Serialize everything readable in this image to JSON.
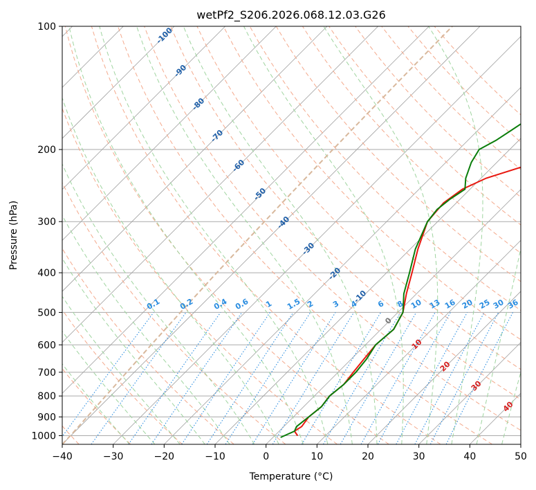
{
  "chart_data": {
    "type": "line",
    "title": "wetPf2_S206.2026.068.12.03.G26",
    "xlabel": "Temperature (°C)",
    "ylabel": "Pressure (hPa)",
    "xlim": [
      -40,
      50
    ],
    "ylim": [
      1050,
      100
    ],
    "x_ticks": [
      "−40",
      "−30",
      "−20",
      "−10",
      "0",
      "10",
      "20",
      "30",
      "40",
      "50"
    ],
    "y_ticks": [
      "100",
      "200",
      "300",
      "400",
      "500",
      "600",
      "700",
      "800",
      "900",
      "1000"
    ],
    "series": [
      {
        "name": "Temperature",
        "color": "#e8170f",
        "points": [
          [
            4.5,
            1000
          ],
          [
            3.0,
            975
          ],
          [
            3.5,
            950
          ],
          [
            3.0,
            900
          ],
          [
            3.5,
            850
          ],
          [
            3.0,
            800
          ],
          [
            3.5,
            750
          ],
          [
            3.0,
            700
          ],
          [
            2.5,
            650
          ],
          [
            2.0,
            600
          ],
          [
            2.5,
            550
          ],
          [
            1.0,
            500
          ],
          [
            -2.0,
            450
          ],
          [
            -5.0,
            400
          ],
          [
            -8.5,
            350
          ],
          [
            -12.0,
            300
          ],
          [
            -12.5,
            270
          ],
          [
            -11.5,
            250
          ],
          [
            -9.0,
            235
          ],
          [
            -4.0,
            220
          ],
          [
            1.0,
            200
          ],
          [
            6.0,
            185
          ],
          [
            13.0,
            170
          ],
          [
            18.0,
            160
          ],
          [
            22.0,
            150
          ],
          [
            26.0,
            135
          ],
          [
            30.0,
            120
          ],
          [
            32.0,
            110
          ],
          [
            33.5,
            100
          ]
        ]
      },
      {
        "name": "Dewpoint",
        "color": "#0a7d0a",
        "points": [
          [
            1.5,
            1010
          ],
          [
            3.0,
            975
          ],
          [
            2.5,
            950
          ],
          [
            3.0,
            900
          ],
          [
            3.5,
            850
          ],
          [
            3.0,
            800
          ],
          [
            3.5,
            750
          ],
          [
            3.5,
            700
          ],
          [
            3.0,
            650
          ],
          [
            2.0,
            600
          ],
          [
            2.5,
            550
          ],
          [
            1.0,
            500
          ],
          [
            -2.5,
            450
          ],
          [
            -5.5,
            400
          ],
          [
            -9.0,
            350
          ],
          [
            -12.0,
            300
          ],
          [
            -12.5,
            280
          ],
          [
            -12.0,
            265
          ],
          [
            -11.0,
            250
          ],
          [
            -13.0,
            235
          ],
          [
            -15.0,
            215
          ],
          [
            -16.0,
            200
          ],
          [
            -14.5,
            190
          ],
          [
            -13.5,
            180
          ],
          [
            -12.5,
            170
          ],
          [
            -10.5,
            155
          ],
          [
            -8.0,
            140
          ],
          [
            -5.5,
            125
          ],
          [
            -3.5,
            115
          ],
          [
            -1.5,
            100
          ]
        ]
      }
    ],
    "dry_adiabat_labels": [
      "-100",
      "-90",
      "-80",
      "-70",
      "-60",
      "-50",
      "-40",
      "-30",
      "-20",
      "-10",
      "0",
      "10",
      "20",
      "30",
      "40"
    ],
    "mixing_ratio_labels": [
      "0.1",
      "0.2",
      "0.4",
      "0.6",
      "1",
      "1.5",
      "2",
      "3",
      "4",
      "6",
      "8",
      "10",
      "13",
      "16",
      "20",
      "25",
      "30",
      "36"
    ],
    "moist_adiabat_labels": [
      "0",
      "10",
      "20",
      "30",
      "40"
    ],
    "colors": {
      "grid": "#aaaaaa",
      "isotherm": "#a0a0a0",
      "dry_adiabat": "#f4a98c",
      "moist_adiabat": "#9fd49f",
      "mixing_ratio": "#2b8de0",
      "dry_label": "#1f5fa8",
      "mixing_label": "#2b8de0",
      "moist_label": "#d62020",
      "dashed_brown": "#d8b89c"
    }
  }
}
